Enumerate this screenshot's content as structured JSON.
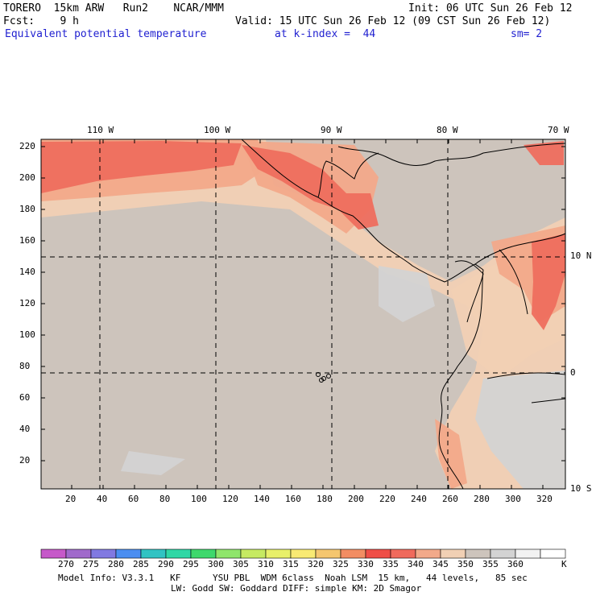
{
  "header": {
    "model_title": "TORERO  15km ARW   Run2    NCAR/MMM",
    "init_label": "Init: 06 UTC Sun 26 Feb 12",
    "fcst_label": "Fcst:    9 h",
    "valid_label": "Valid: 15 UTC Sun 26 Feb 12 (09 CST Sun 26 Feb 12)",
    "field_name": "Equivalent potential temperature",
    "level_label": "at k-index =  44",
    "smoothing_label": "sm= 2"
  },
  "map": {
    "top_lon_labels": [
      "110 W",
      "100 W",
      "90 W",
      "80 W",
      "70 W"
    ],
    "right_lat_labels": [
      "10 N",
      "0",
      "10 S"
    ],
    "y_ticks": [
      "220",
      "200",
      "180",
      "160",
      "140",
      "120",
      "100",
      "80",
      "60",
      "40",
      "20"
    ],
    "x_ticks": [
      "20",
      "40",
      "60",
      "80",
      "100",
      "120",
      "140",
      "160",
      "180",
      "200",
      "220",
      "240",
      "260",
      "280",
      "300",
      "320"
    ],
    "colors": {
      "background": "#cdc4bc",
      "warm1": "#f1d0b4",
      "warm2": "#f2a98a",
      "warm3": "#ee6e5e",
      "grey": "#d3d3d3",
      "coast": "#000000"
    }
  },
  "colorbar": {
    "labels": [
      "270",
      "275",
      "280",
      "285",
      "290",
      "295",
      "300",
      "305",
      "310",
      "315",
      "320",
      "325",
      "330",
      "335",
      "340",
      "345",
      "350",
      "355",
      "360"
    ],
    "unit": "K",
    "colors": [
      "#c659c9",
      "#a06acb",
      "#8179e1",
      "#4b8ef1",
      "#31c3c3",
      "#2fd7a5",
      "#3ed86c",
      "#8fe56b",
      "#c6ea62",
      "#e8f06a",
      "#f9ea73",
      "#f5c66f",
      "#f28d63",
      "#ef4e47",
      "#f06a5c",
      "#f2a98a",
      "#f1d0b4",
      "#cdc4bc",
      "#d3d3d3",
      "#f2f2f2",
      "#ffffff"
    ]
  },
  "footer": {
    "line1": "Model Info: V3.3.1   KF      YSU PBL  WDM 6class  Noah LSM  15 km,   44 levels,   85 sec",
    "line2": "LW: Godd SW: Goddard DIFF: simple KM: 2D Smagor"
  }
}
